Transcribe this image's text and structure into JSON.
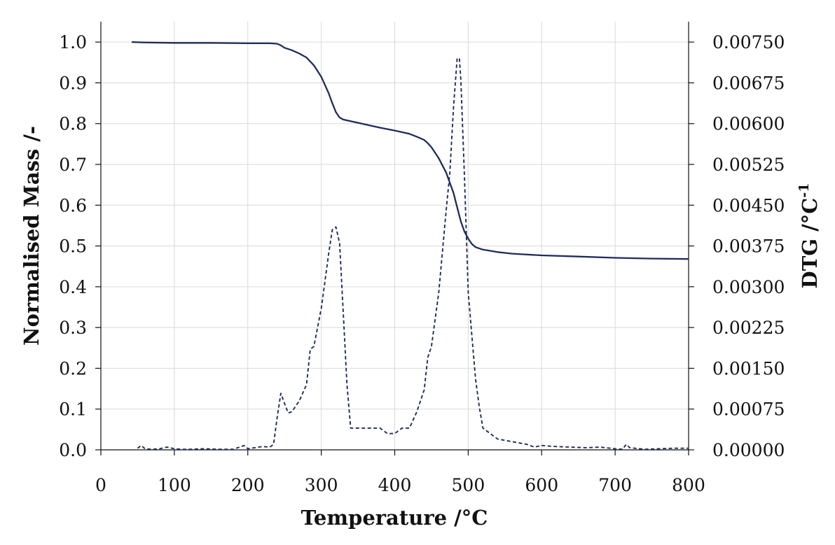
{
  "chart_data": {
    "type": "line",
    "title": "",
    "xlabel": "Temperature /°C",
    "ylabel": "Normalised Mass /-",
    "y2label_main": "DTG  /°C",
    "y2label_sup": "-1",
    "xlim": [
      0,
      800
    ],
    "ylim": [
      0,
      1.05
    ],
    "y2lim": [
      0,
      0.007875
    ],
    "xticks": [
      "0",
      "100",
      "200",
      "300",
      "400",
      "500",
      "600",
      "700",
      "800"
    ],
    "yticks": [
      "0.0",
      "0.1",
      "0.2",
      "0.3",
      "0.4",
      "0.5",
      "0.6",
      "0.7",
      "0.8",
      "0.9",
      "1.0"
    ],
    "y2ticks": [
      "0.00000",
      "0.00075",
      "0.00150",
      "0.00225",
      "0.00300",
      "0.00375",
      "0.00450",
      "0.00525",
      "0.00600",
      "0.00675",
      "0.00750"
    ],
    "grid": true,
    "series": [
      {
        "axis": "left",
        "style": "solid",
        "color": "#1f2d5c",
        "x": [
          42,
          60,
          100,
          150,
          200,
          230,
          240,
          245,
          250,
          260,
          270,
          280,
          290,
          300,
          310,
          315,
          320,
          325,
          330,
          340,
          360,
          380,
          400,
          420,
          430,
          440,
          445,
          450,
          460,
          470,
          480,
          485,
          490,
          495,
          500,
          505,
          510,
          520,
          540,
          560,
          600,
          650,
          700,
          750,
          800
        ],
        "y": [
          1.0,
          0.999,
          0.998,
          0.998,
          0.997,
          0.997,
          0.996,
          0.992,
          0.986,
          0.98,
          0.972,
          0.962,
          0.943,
          0.915,
          0.875,
          0.85,
          0.828,
          0.815,
          0.81,
          0.806,
          0.798,
          0.79,
          0.783,
          0.775,
          0.768,
          0.76,
          0.752,
          0.742,
          0.715,
          0.68,
          0.63,
          0.595,
          0.56,
          0.535,
          0.518,
          0.505,
          0.497,
          0.491,
          0.485,
          0.481,
          0.477,
          0.474,
          0.471,
          0.469,
          0.468
        ]
      },
      {
        "axis": "right",
        "style": "dashed",
        "color": "#1f2d5c",
        "x": [
          50,
          55,
          60,
          70,
          80,
          90,
          100,
          110,
          120,
          140,
          160,
          180,
          195,
          200,
          210,
          220,
          230,
          235,
          240,
          245,
          250,
          255,
          260,
          265,
          270,
          280,
          285,
          290,
          300,
          305,
          310,
          315,
          320,
          325,
          330,
          335,
          340,
          345,
          350,
          360,
          370,
          380,
          390,
          400,
          410,
          420,
          430,
          440,
          445,
          450,
          460,
          470,
          475,
          480,
          485,
          488,
          490,
          495,
          500,
          505,
          510,
          515,
          520,
          530,
          540,
          560,
          580,
          590,
          600,
          620,
          640,
          660,
          680,
          700,
          710,
          715,
          720,
          740,
          760,
          780,
          800
        ],
        "y": [
          3e-05,
          8e-05,
          2e-05,
          1e-05,
          2e-05,
          5e-05,
          2e-05,
          1e-05,
          1e-05,
          2e-05,
          1e-05,
          1e-05,
          8e-05,
          2e-05,
          4e-05,
          6e-05,
          5e-05,
          0.0001,
          0.0006,
          0.00104,
          0.00085,
          0.00068,
          0.0007,
          0.0008,
          0.0009,
          0.0012,
          0.00185,
          0.0019,
          0.0026,
          0.0031,
          0.0036,
          0.00405,
          0.0041,
          0.0038,
          0.0025,
          0.0012,
          0.0004,
          0.0004,
          0.0004,
          0.0004,
          0.0004,
          0.0004,
          0.0003,
          0.0003,
          0.0004,
          0.0004,
          0.0007,
          0.0011,
          0.0017,
          0.0019,
          0.0029,
          0.0044,
          0.0051,
          0.0063,
          0.0072,
          0.0072,
          0.0068,
          0.005,
          0.0029,
          0.0021,
          0.0013,
          0.0008,
          0.0004,
          0.0003,
          0.0002,
          0.00015,
          0.0001,
          5e-05,
          8e-05,
          6e-05,
          5e-05,
          4e-05,
          5e-05,
          2e-05,
          1e-05,
          0.0001,
          4e-05,
          1e-05,
          2e-05,
          3e-05,
          3e-05
        ]
      }
    ]
  }
}
